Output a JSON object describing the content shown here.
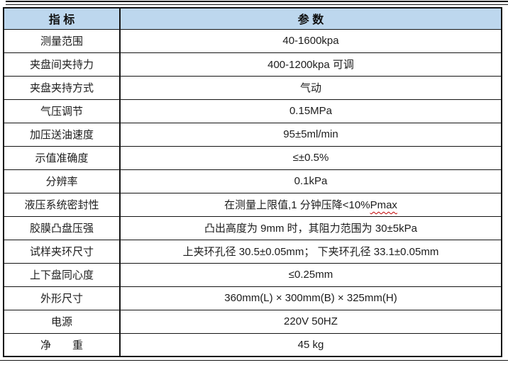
{
  "table": {
    "header": {
      "indicator": "指 标",
      "parameter": "参 数"
    },
    "rows": [
      {
        "indicator": "测量范围",
        "parameter": "40-1600kpa"
      },
      {
        "indicator": "夹盘间夹持力",
        "parameter": "400-1200kpa 可调"
      },
      {
        "indicator": "夹盘夹持方式",
        "parameter": "气动"
      },
      {
        "indicator": "气压调节",
        "parameter": "0.15MPa"
      },
      {
        "indicator": "加压送油速度",
        "parameter": "95±5ml/min"
      },
      {
        "indicator": "示值准确度",
        "parameter": "≤±0.5%"
      },
      {
        "indicator": "分辨率",
        "parameter": "0.1kPa"
      },
      {
        "indicator": "液压系统密封性",
        "parameter": "在测量上限值,1 分钟压降<10%Pmax",
        "underlined_part": "Pmax"
      },
      {
        "indicator": "胶膜凸盘压强",
        "parameter": "凸出高度为 9mm 时，其阻力范围为 30±5kPa"
      },
      {
        "indicator": "试样夹环尺寸",
        "parameter": "上夹环孔径 30.5±0.05mm； 下夹环孔径 33.1±0.05mm"
      },
      {
        "indicator": "上下盘同心度",
        "parameter": "≤0.25mm"
      },
      {
        "indicator": "外形尺寸",
        "parameter": "360mm(L)  ×  300mm(B)  ×  325mm(H)"
      },
      {
        "indicator": "电源",
        "parameter": "220V 50HZ"
      },
      {
        "indicator": "净　　重",
        "parameter": "45 kg"
      }
    ],
    "colors": {
      "header_background": "#BDD7EE",
      "border": "#141414",
      "text": "#1c1c1c",
      "spellcheck_underline": "#C00000"
    }
  }
}
